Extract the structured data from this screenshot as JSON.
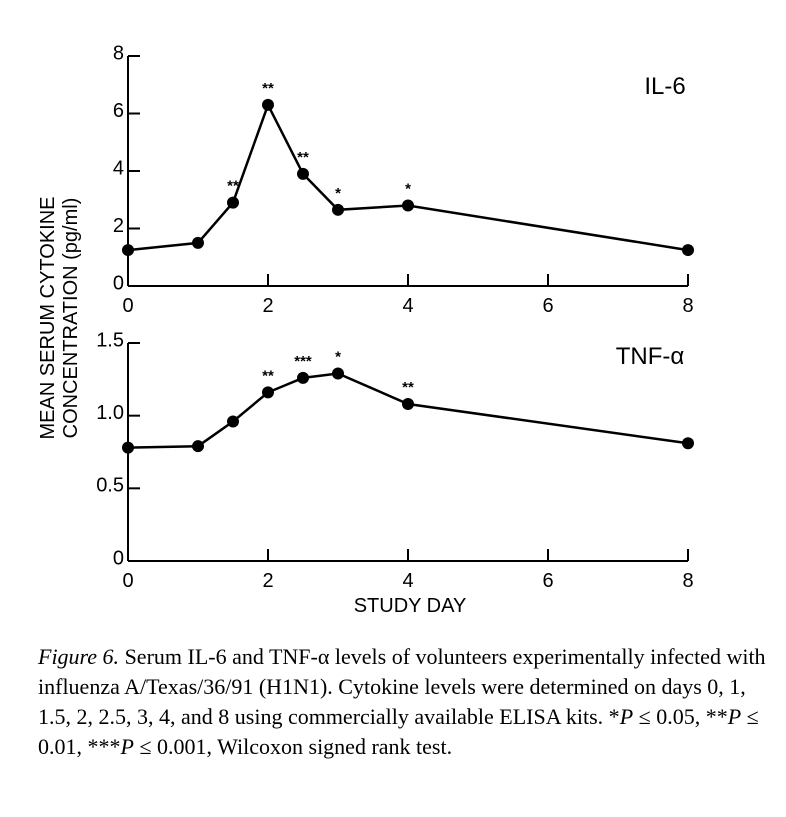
{
  "chart_data": [
    {
      "type": "line",
      "title": "IL-6",
      "x": [
        0,
        1,
        1.5,
        2,
        2.5,
        3,
        4,
        8
      ],
      "series": [
        {
          "values": [
            1.25,
            1.5,
            2.9,
            6.3,
            3.9,
            2.65,
            2.8,
            1.25
          ]
        }
      ],
      "significance": [
        "",
        "",
        "**",
        "**",
        "**",
        "*",
        "*",
        ""
      ],
      "xlim": [
        0,
        8
      ],
      "ylim": [
        0,
        8
      ],
      "xticks": [
        "0",
        "2",
        "4",
        "6",
        "8"
      ],
      "yticks": [
        "0",
        "2",
        "4",
        "6",
        "8"
      ],
      "xticks_val": [
        0,
        2,
        4,
        6,
        8
      ],
      "yticks_val": [
        0,
        2,
        4,
        6,
        8
      ]
    },
    {
      "type": "line",
      "title": "TNF-α",
      "x": [
        0,
        1,
        1.5,
        2,
        2.5,
        3,
        4,
        8
      ],
      "series": [
        {
          "values": [
            0.78,
            0.79,
            0.96,
            1.16,
            1.26,
            1.29,
            1.08,
            0.81
          ]
        }
      ],
      "significance": [
        "",
        "",
        "",
        "**",
        "***",
        "*",
        "**",
        ""
      ],
      "xlim": [
        0,
        8
      ],
      "ylim": [
        0,
        1.5
      ],
      "xticks": [
        "0",
        "2",
        "4",
        "6",
        "8"
      ],
      "yticks": [
        "0",
        "0.5",
        "1.0",
        "1.5"
      ],
      "xticks_val": [
        0,
        2,
        4,
        6,
        8
      ],
      "yticks_val": [
        0,
        0.5,
        1.0,
        1.5
      ]
    }
  ],
  "shared": {
    "ylabel_line1": "MEAN SERUM CYTOKINE",
    "ylabel_line2": "CONCENTRATION (pg/ml)",
    "xlabel": "STUDY DAY"
  },
  "caption": {
    "fig_num": "Figure 6.",
    "text_1": " Serum IL-6 and TNF-α levels of volunteers experimentally infected with influenza A/Texas/36/91 (H1N1). Cytokine levels were determined on days 0, 1, 1.5, 2, 2.5, 3, 4, and 8 using commercially available ELISA kits. *",
    "p1": "P",
    "text_2": " ≤ 0.05, **",
    "p2": "P",
    "text_3": " ≤ 0.01, ***",
    "p3": "P",
    "text_4": " ≤ 0.001, Wilcoxon signed rank test."
  }
}
